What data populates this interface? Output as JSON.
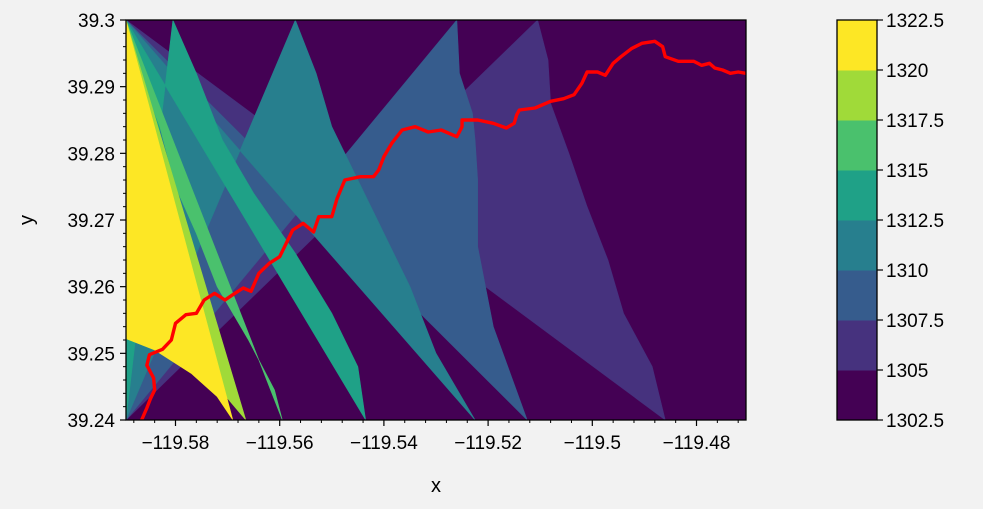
{
  "chart_data": {
    "type": "heatmap",
    "subtype": "filled-contour",
    "xlabel": "x",
    "ylabel": "y",
    "xlim": [
      -119.5895,
      -119.4705
    ],
    "ylim": [
      39.24,
      39.3
    ],
    "x_ticks": [
      -119.58,
      -119.56,
      -119.54,
      -119.52,
      -119.5,
      -119.48
    ],
    "x_tick_labels": [
      "−119.58",
      "−119.56",
      "−119.54",
      "−119.52",
      "−119.5",
      "−119.48"
    ],
    "y_ticks": [
      39.24,
      39.25,
      39.26,
      39.27,
      39.28,
      39.29,
      39.3
    ],
    "y_tick_labels": [
      "39.24",
      "39.25",
      "39.26",
      "39.27",
      "39.28",
      "39.29",
      "39.3"
    ],
    "colormap": "viridis",
    "colorbar": {
      "levels": [
        1302.5,
        1305,
        1307.5,
        1310,
        1312.5,
        1315,
        1317.5,
        1320,
        1322.5
      ],
      "tick_labels": [
        "1302.5",
        "1305",
        "1307.5",
        "1310",
        "1312.5",
        "1315",
        "1317.5",
        "1320",
        "1322.5"
      ],
      "colors": [
        "#440154",
        "#46327e",
        "#365c8d",
        "#277f8e",
        "#1fa187",
        "#4ac16d",
        "#a0da39",
        "#fde725"
      ]
    },
    "contour_boundaries": [
      {
        "level": 1320,
        "points": [
          [
            -119.5895,
            39.2522
          ],
          [
            -119.584,
            39.2505
          ],
          [
            -119.577,
            39.247
          ],
          [
            -119.572,
            39.2435
          ],
          [
            -119.569,
            39.24
          ]
        ]
      },
      {
        "level": 1317.5,
        "points": [
          [
            -119.5895,
            39.2665
          ],
          [
            -119.587,
            39.262
          ],
          [
            -119.583,
            39.257
          ],
          [
            -119.578,
            39.2505
          ],
          [
            -119.573,
            39.246
          ],
          [
            -119.5665,
            39.24
          ]
        ]
      },
      {
        "level": 1315,
        "points": [
          [
            -119.5895,
            39.2937
          ],
          [
            -119.586,
            39.29
          ],
          [
            -119.583,
            39.284
          ],
          [
            -119.58,
            39.275
          ],
          [
            -119.576,
            39.268
          ],
          [
            -119.572,
            39.26
          ],
          [
            -119.566,
            39.252
          ],
          [
            -119.561,
            39.2445
          ],
          [
            -119.5595,
            39.24
          ]
        ]
      },
      {
        "level": 1312.5,
        "points": [
          [
            -119.5805,
            39.3
          ],
          [
            -119.576,
            39.292
          ],
          [
            -119.571,
            39.282
          ],
          [
            -119.565,
            39.274
          ],
          [
            -119.557,
            39.265
          ],
          [
            -119.55,
            39.256
          ],
          [
            -119.545,
            39.248
          ],
          [
            -119.5435,
            39.24
          ]
        ]
      },
      {
        "level": 1310,
        "points": [
          [
            -119.557,
            39.3
          ],
          [
            -119.553,
            39.292
          ],
          [
            -119.55,
            39.284
          ],
          [
            -119.545,
            39.276
          ],
          [
            -119.54,
            39.268
          ],
          [
            -119.535,
            39.26
          ],
          [
            -119.53,
            39.25
          ],
          [
            -119.5225,
            39.24
          ]
        ]
      },
      {
        "level": 1307.5,
        "points": [
          [
            -119.526,
            39.3
          ],
          [
            -119.5255,
            39.292
          ],
          [
            -119.523,
            39.286
          ],
          [
            -119.5225,
            39.282
          ],
          [
            -119.522,
            39.276
          ],
          [
            -119.522,
            39.266
          ],
          [
            -119.519,
            39.254
          ],
          [
            -119.5125,
            39.24
          ]
        ]
      },
      {
        "level": 1305,
        "points": [
          [
            -119.5105,
            39.3
          ],
          [
            -119.5085,
            39.294
          ],
          [
            -119.508,
            39.2875
          ],
          [
            -119.5045,
            39.28
          ],
          [
            -119.501,
            39.272
          ],
          [
            -119.497,
            39.264
          ],
          [
            -119.494,
            39.256
          ],
          [
            -119.4885,
            39.248
          ],
          [
            -119.486,
            39.24
          ]
        ]
      }
    ],
    "series": [
      {
        "color": "#ff0000",
        "points": [
          [
            -119.5865,
            39.24
          ],
          [
            -119.5855,
            39.2418
          ],
          [
            -119.5848,
            39.2432
          ],
          [
            -119.584,
            39.2445
          ],
          [
            -119.5842,
            39.2463
          ],
          [
            -119.5855,
            39.2482
          ],
          [
            -119.585,
            39.2498
          ],
          [
            -119.5825,
            39.2506
          ],
          [
            -119.5808,
            39.252
          ],
          [
            -119.58,
            39.2545
          ],
          [
            -119.578,
            39.2558
          ],
          [
            -119.576,
            39.256
          ],
          [
            -119.5745,
            39.258
          ],
          [
            -119.5725,
            39.259
          ],
          [
            -119.5705,
            39.258
          ],
          [
            -119.569,
            39.2588
          ],
          [
            -119.567,
            39.2598
          ],
          [
            -119.5655,
            39.2593
          ],
          [
            -119.564,
            39.262
          ],
          [
            -119.562,
            39.2635
          ],
          [
            -119.56,
            39.2645
          ],
          [
            -119.5575,
            39.2685
          ],
          [
            -119.5555,
            39.2695
          ],
          [
            -119.5535,
            39.2682
          ],
          [
            -119.5525,
            39.2705
          ],
          [
            -119.55,
            39.2705
          ],
          [
            -119.549,
            39.2732
          ],
          [
            -119.5475,
            39.276
          ],
          [
            -119.5445,
            39.2765
          ],
          [
            -119.542,
            39.2765
          ],
          [
            -119.541,
            39.2775
          ],
          [
            -119.54,
            39.2795
          ],
          [
            -119.5385,
            39.2815
          ],
          [
            -119.5365,
            39.2835
          ],
          [
            -119.534,
            39.284
          ],
          [
            -119.5315,
            39.2832
          ],
          [
            -119.529,
            39.2835
          ],
          [
            -119.526,
            39.2825
          ],
          [
            -119.525,
            39.284
          ],
          [
            -119.525,
            39.285
          ],
          [
            -119.522,
            39.285
          ],
          [
            -119.519,
            39.2845
          ],
          [
            -119.5165,
            39.2838
          ],
          [
            -119.515,
            39.2845
          ],
          [
            -119.5145,
            39.2858
          ],
          [
            -119.514,
            39.2865
          ],
          [
            -119.511,
            39.2868
          ],
          [
            -119.508,
            39.2878
          ],
          [
            -119.5055,
            39.2882
          ],
          [
            -119.5035,
            39.2888
          ],
          [
            -119.502,
            39.2905
          ],
          [
            -119.501,
            39.2922
          ],
          [
            -119.499,
            39.2922
          ],
          [
            -119.4975,
            39.2917
          ],
          [
            -119.496,
            39.2935
          ],
          [
            -119.4945,
            39.2945
          ],
          [
            -119.4925,
            39.2957
          ],
          [
            -119.4905,
            39.2965
          ],
          [
            -119.488,
            39.2968
          ],
          [
            -119.4865,
            39.296
          ],
          [
            -119.486,
            39.2945
          ],
          [
            -119.4835,
            39.2938
          ],
          [
            -119.4805,
            39.2938
          ],
          [
            -119.479,
            39.2932
          ],
          [
            -119.4775,
            39.2935
          ],
          [
            -119.4765,
            39.2928
          ],
          [
            -119.475,
            39.2925
          ],
          [
            -119.4735,
            39.292
          ],
          [
            -119.472,
            39.2922
          ],
          [
            -119.4705,
            39.292
          ]
        ]
      }
    ]
  }
}
